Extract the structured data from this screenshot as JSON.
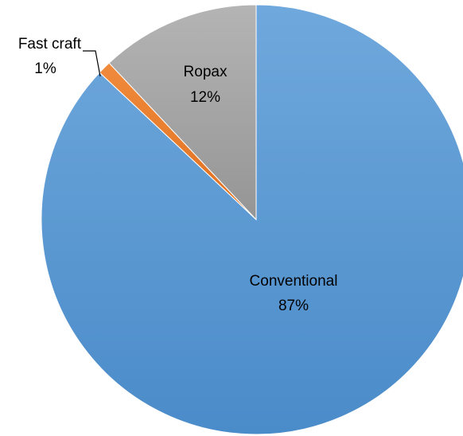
{
  "chart_data": {
    "type": "pie",
    "slices": [
      {
        "label": "Conventional",
        "value": 87,
        "percent_label": "87%",
        "color": "#5B9BD5"
      },
      {
        "label": "Fast craft",
        "value": 1,
        "percent_label": "1%",
        "color": "#ED7D31"
      },
      {
        "label": "Ropax",
        "value": 12,
        "percent_label": "12%",
        "color": "#A5A5A5"
      }
    ],
    "start_angle": "12 o'clock, clockwise",
    "legend": "none"
  }
}
